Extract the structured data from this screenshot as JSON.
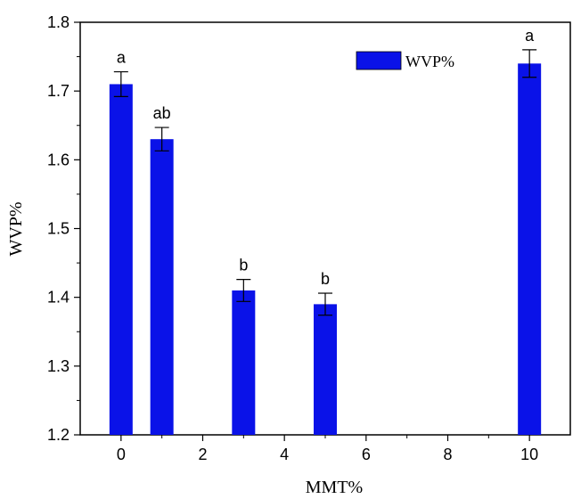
{
  "chart_data": {
    "type": "bar",
    "title": "",
    "xlabel": "MMT%",
    "ylabel": "WVP%",
    "x": [
      0,
      1,
      3,
      5,
      10
    ],
    "values": [
      1.71,
      1.63,
      1.41,
      1.39,
      1.74
    ],
    "errors": [
      0.018,
      0.017,
      0.016,
      0.016,
      0.02
    ],
    "labels": [
      "a",
      "ab",
      "b",
      "b",
      "a"
    ],
    "xlim": [
      -1,
      11
    ],
    "ylim": [
      1.2,
      1.8
    ],
    "xticks": [
      "0",
      "2",
      "4",
      "6",
      "8",
      "10"
    ],
    "yticks": [
      "1.2",
      "1.3",
      "1.4",
      "1.5",
      "1.6",
      "1.7",
      "1.8"
    ],
    "series": [
      {
        "name": "WVP%",
        "color": "#0a12e8"
      }
    ],
    "legend_position": "top-right",
    "grid": false
  }
}
